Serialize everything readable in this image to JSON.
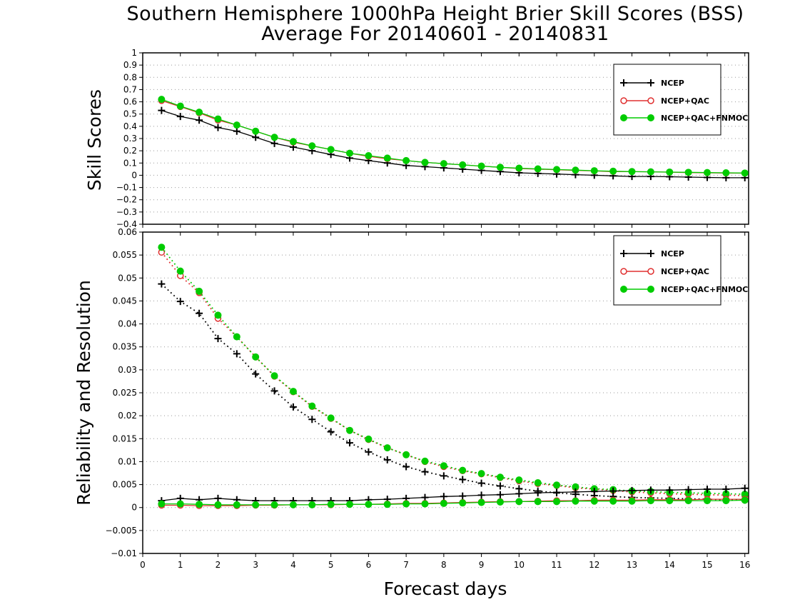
{
  "title": "Southern Hemisphere 1000hPa Height Brier Skill Scores (BSS)",
  "subtitle": "Average For 20140601 - 20140831",
  "xlabel": "Forecast days",
  "colors": {
    "ncep": "#000000",
    "ncep_qc": "#e03030",
    "ncep_qc_fnmoc": "#00cc00",
    "grid": "#999999"
  },
  "chart_data": [
    {
      "type": "line",
      "panel": "top",
      "ylabel": "Skill Scores",
      "xlim": [
        0,
        16.1
      ],
      "ylim": [
        -0.4,
        1
      ],
      "xticks": [
        "0",
        "1",
        "2",
        "3",
        "4",
        "5",
        "6",
        "7",
        "8",
        "9",
        "10",
        "11",
        "12",
        "13",
        "14",
        "15",
        "16"
      ],
      "yticks": [
        "−0.4",
        "−0.3",
        "−0.2",
        "−0.1",
        "0",
        "0.1",
        "0.2",
        "0.3",
        "0.4",
        "0.5",
        "0.6",
        "0.7",
        "0.8",
        "0.9",
        "1"
      ],
      "grid": true,
      "legend_position": "top-right",
      "x": [
        0.5,
        1,
        1.5,
        2,
        2.5,
        3,
        3.5,
        4,
        4.5,
        5,
        5.5,
        6,
        6.5,
        7,
        7.5,
        8,
        8.5,
        9,
        9.5,
        10,
        10.5,
        11,
        11.5,
        12,
        12.5,
        13,
        13.5,
        14,
        14.5,
        15,
        15.5,
        16
      ],
      "series": [
        {
          "name": "NCEP",
          "key": "ncep",
          "marker": "plus",
          "style": "solid",
          "values": [
            0.53,
            0.48,
            0.45,
            0.39,
            0.36,
            0.31,
            0.26,
            0.23,
            0.2,
            0.17,
            0.14,
            0.12,
            0.1,
            0.08,
            0.07,
            0.06,
            0.05,
            0.04,
            0.03,
            0.02,
            0.015,
            0.01,
            0.005,
            0.0,
            -0.005,
            -0.01,
            -0.01,
            -0.012,
            -0.015,
            -0.018,
            -0.02,
            -0.02
          ]
        },
        {
          "name": "NCEP+QAC",
          "key": "ncep_qc",
          "marker": "circle-open",
          "style": "solid",
          "values": [
            0.61,
            0.56,
            0.51,
            0.45,
            0.41,
            0.36,
            0.31,
            0.27,
            0.24,
            0.21,
            0.18,
            0.155,
            0.135,
            0.12,
            0.105,
            0.095,
            0.085,
            0.075,
            0.065,
            0.055,
            0.05,
            0.045,
            0.04,
            0.035,
            0.03,
            0.03,
            0.028,
            0.025,
            0.022,
            0.02,
            0.018,
            0.017
          ]
        },
        {
          "name": "NCEP+QAC+FNMOC",
          "key": "ncep_qc_fnmoc",
          "marker": "circle-filled",
          "style": "solid",
          "values": [
            0.62,
            0.565,
            0.515,
            0.46,
            0.41,
            0.36,
            0.31,
            0.275,
            0.24,
            0.21,
            0.18,
            0.16,
            0.14,
            0.12,
            0.105,
            0.095,
            0.085,
            0.075,
            0.065,
            0.058,
            0.052,
            0.047,
            0.042,
            0.037,
            0.033,
            0.03,
            0.028,
            0.026,
            0.024,
            0.022,
            0.02,
            0.018
          ]
        }
      ]
    },
    {
      "type": "line",
      "panel": "bottom",
      "ylabel": "Reliability and Resolution",
      "xlim": [
        0,
        16.1
      ],
      "ylim": [
        -0.01,
        0.06
      ],
      "xticks": [
        "0",
        "1",
        "2",
        "3",
        "4",
        "5",
        "6",
        "7",
        "8",
        "9",
        "10",
        "11",
        "12",
        "13",
        "14",
        "15",
        "16"
      ],
      "yticks": [
        "−0.01",
        "−0.005",
        "0",
        "0.005",
        "0.01",
        "0.015",
        "0.02",
        "0.025",
        "0.03",
        "0.035",
        "0.04",
        "0.045",
        "0.05",
        "0.055",
        "0.06"
      ],
      "grid": true,
      "legend_position": "top-right",
      "x": [
        0.5,
        1,
        1.5,
        2,
        2.5,
        3,
        3.5,
        4,
        4.5,
        5,
        5.5,
        6,
        6.5,
        7,
        7.5,
        8,
        8.5,
        9,
        9.5,
        10,
        10.5,
        11,
        11.5,
        12,
        12.5,
        13,
        13.5,
        14,
        14.5,
        15,
        15.5,
        16
      ],
      "series": [
        {
          "name": "NCEP",
          "key": "ncep",
          "marker": "plus",
          "style": "dotted",
          "component": "resolution",
          "values": [
            0.0487,
            0.0449,
            0.0423,
            0.0368,
            0.0335,
            0.0291,
            0.0254,
            0.0219,
            0.0192,
            0.0165,
            0.0141,
            0.0121,
            0.0104,
            0.0089,
            0.0078,
            0.0069,
            0.0061,
            0.0053,
            0.0047,
            0.0041,
            0.0036,
            0.0032,
            0.0029,
            0.0026,
            0.0024,
            0.0022,
            0.0021,
            0.002,
            0.0019,
            0.0018,
            0.0017,
            0.0016
          ]
        },
        {
          "name": "NCEP+QAC",
          "key": "ncep_qc",
          "marker": "circle-open",
          "style": "dotted",
          "component": "resolution",
          "values": [
            0.0556,
            0.0505,
            0.0468,
            0.0412,
            0.0372,
            0.0328,
            0.0286,
            0.0252,
            0.022,
            0.0194,
            0.0168,
            0.0148,
            0.013,
            0.0115,
            0.01,
            0.0089,
            0.008,
            0.0073,
            0.0065,
            0.0058,
            0.0052,
            0.0048,
            0.0043,
            0.004,
            0.0037,
            0.0034,
            0.0032,
            0.003,
            0.0029,
            0.0028,
            0.0027,
            0.0026
          ]
        },
        {
          "name": "NCEP+QAC+FNMOC",
          "key": "ncep_qc_fnmoc",
          "marker": "circle-filled",
          "style": "dotted",
          "component": "resolution",
          "values": [
            0.0567,
            0.0515,
            0.0471,
            0.0419,
            0.0372,
            0.0328,
            0.0287,
            0.0253,
            0.0221,
            0.0195,
            0.0168,
            0.0149,
            0.013,
            0.0115,
            0.0101,
            0.0091,
            0.0081,
            0.0074,
            0.0066,
            0.006,
            0.0054,
            0.0049,
            0.0045,
            0.0041,
            0.0039,
            0.0036,
            0.0035,
            0.0033,
            0.0032,
            0.0031,
            0.003,
            0.0029
          ]
        },
        {
          "name": "NCEP",
          "key": "ncep",
          "marker": "plus",
          "style": "solid",
          "component": "reliability",
          "values": [
            0.0015,
            0.002,
            0.0017,
            0.002,
            0.0017,
            0.0015,
            0.0015,
            0.0015,
            0.0015,
            0.0015,
            0.0015,
            0.0017,
            0.0018,
            0.002,
            0.0022,
            0.0024,
            0.0025,
            0.0027,
            0.0028,
            0.003,
            0.0032,
            0.0033,
            0.0034,
            0.0035,
            0.0036,
            0.0037,
            0.0038,
            0.0038,
            0.0039,
            0.004,
            0.004,
            0.0042
          ]
        },
        {
          "name": "NCEP+QAC",
          "key": "ncep_qc",
          "marker": "circle-open",
          "style": "solid",
          "component": "reliability",
          "values": [
            0.0005,
            0.0005,
            0.0004,
            0.0004,
            0.0004,
            0.0005,
            0.0005,
            0.0006,
            0.0006,
            0.0006,
            0.0007,
            0.0007,
            0.0008,
            0.0009,
            0.0009,
            0.001,
            0.0011,
            0.0012,
            0.0013,
            0.0013,
            0.0014,
            0.0015,
            0.0015,
            0.0016,
            0.0016,
            0.0016,
            0.0017,
            0.0017,
            0.0017,
            0.0018,
            0.0018,
            0.0018
          ]
        },
        {
          "name": "NCEP+QAC+FNMOC",
          "key": "ncep_qc_fnmoc",
          "marker": "circle-filled",
          "style": "solid",
          "component": "reliability",
          "values": [
            0.0008,
            0.0008,
            0.0007,
            0.0006,
            0.0006,
            0.0006,
            0.0006,
            0.0006,
            0.0006,
            0.0007,
            0.0007,
            0.0007,
            0.0007,
            0.0008,
            0.0008,
            0.0009,
            0.001,
            0.0011,
            0.0012,
            0.0013,
            0.0013,
            0.0013,
            0.0014,
            0.0014,
            0.0014,
            0.0014,
            0.0015,
            0.0015,
            0.0015,
            0.0015,
            0.0015,
            0.0016
          ]
        }
      ]
    }
  ]
}
